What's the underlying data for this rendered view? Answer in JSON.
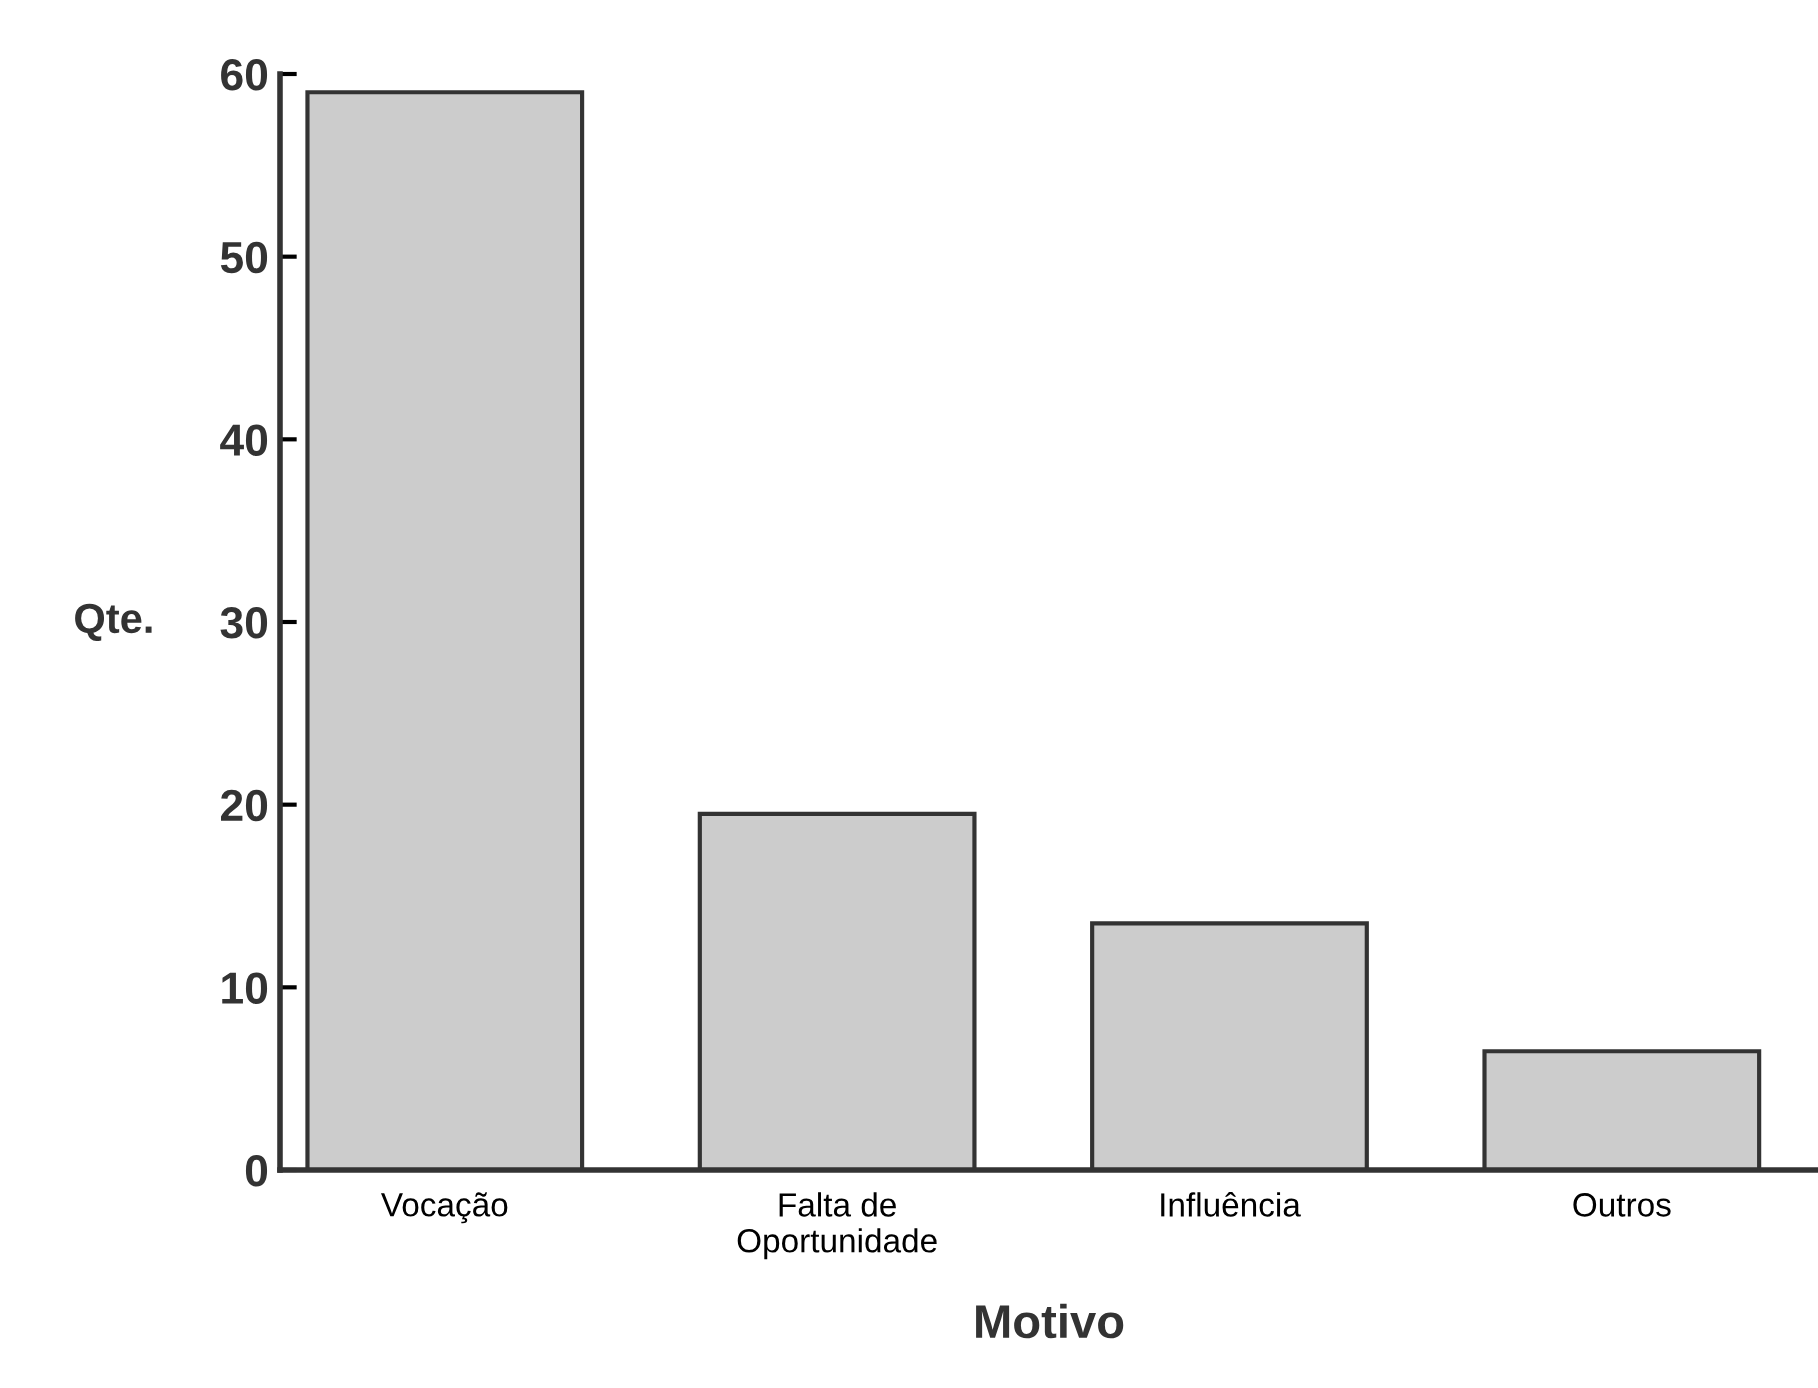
{
  "chart_data": {
    "type": "bar",
    "categories": [
      "Vocação",
      "Falta de\nOportunidade",
      "Influência",
      "Outros"
    ],
    "values": [
      59,
      19.5,
      13.5,
      6.5
    ],
    "color": "#cccccc",
    "xlabel": "Motivo",
    "ylabel": "Qte.",
    "ylim": [
      0,
      60
    ],
    "yticks": [
      0,
      10,
      20,
      30,
      40,
      50,
      60
    ],
    "grid": false,
    "legend": false
  }
}
